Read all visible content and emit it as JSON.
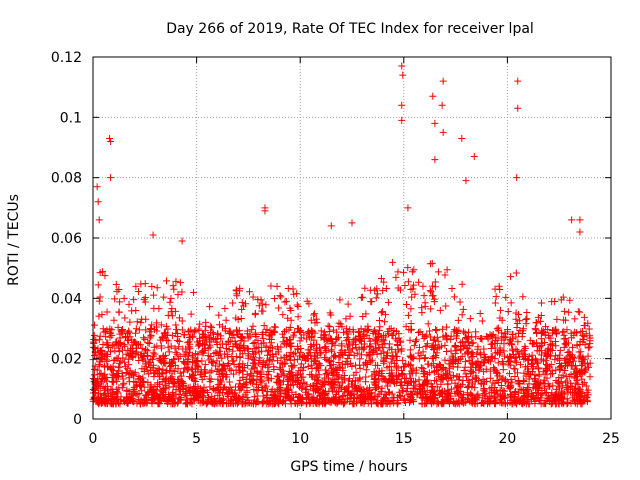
{
  "chart_data": {
    "type": "scatter",
    "title": "Day 266 of 2019, Rate Of TEC Index for receiver lpal",
    "xlabel": "GPS time / hours",
    "ylabel": "ROTI / TECUs",
    "xlim": [
      0,
      25
    ],
    "ylim": [
      0,
      0.12
    ],
    "x_ticks": [
      "0",
      "5",
      "10",
      "15",
      "20",
      "25"
    ],
    "y_ticks": [
      "0",
      "0.02",
      "0.04",
      "0.06",
      "0.08",
      "0.1",
      "0.12"
    ],
    "grid": true,
    "marker": "+",
    "color": "#ff0000",
    "x_range_hours": [
      0,
      24
    ],
    "baseline_roti_range": [
      0.005,
      0.03
    ],
    "notable_points": [
      {
        "x": 0.2,
        "y": 0.077
      },
      {
        "x": 0.25,
        "y": 0.072
      },
      {
        "x": 0.3,
        "y": 0.066
      },
      {
        "x": 0.8,
        "y": 0.093
      },
      {
        "x": 0.85,
        "y": 0.092
      },
      {
        "x": 0.85,
        "y": 0.08
      },
      {
        "x": 2.9,
        "y": 0.061
      },
      {
        "x": 4.3,
        "y": 0.059
      },
      {
        "x": 8.3,
        "y": 0.07
      },
      {
        "x": 8.3,
        "y": 0.069
      },
      {
        "x": 11.5,
        "y": 0.064
      },
      {
        "x": 12.5,
        "y": 0.065
      },
      {
        "x": 14.9,
        "y": 0.117
      },
      {
        "x": 14.95,
        "y": 0.114
      },
      {
        "x": 14.9,
        "y": 0.104
      },
      {
        "x": 14.9,
        "y": 0.099
      },
      {
        "x": 15.2,
        "y": 0.07
      },
      {
        "x": 16.4,
        "y": 0.107
      },
      {
        "x": 16.5,
        "y": 0.098
      },
      {
        "x": 16.5,
        "y": 0.086
      },
      {
        "x": 16.9,
        "y": 0.112
      },
      {
        "x": 16.85,
        "y": 0.104
      },
      {
        "x": 16.9,
        "y": 0.095
      },
      {
        "x": 17.8,
        "y": 0.093
      },
      {
        "x": 18.0,
        "y": 0.079
      },
      {
        "x": 18.4,
        "y": 0.087
      },
      {
        "x": 20.5,
        "y": 0.112
      },
      {
        "x": 20.5,
        "y": 0.103
      },
      {
        "x": 20.45,
        "y": 0.08
      },
      {
        "x": 23.1,
        "y": 0.066
      },
      {
        "x": 23.5,
        "y": 0.066
      },
      {
        "x": 23.5,
        "y": 0.062
      }
    ]
  }
}
